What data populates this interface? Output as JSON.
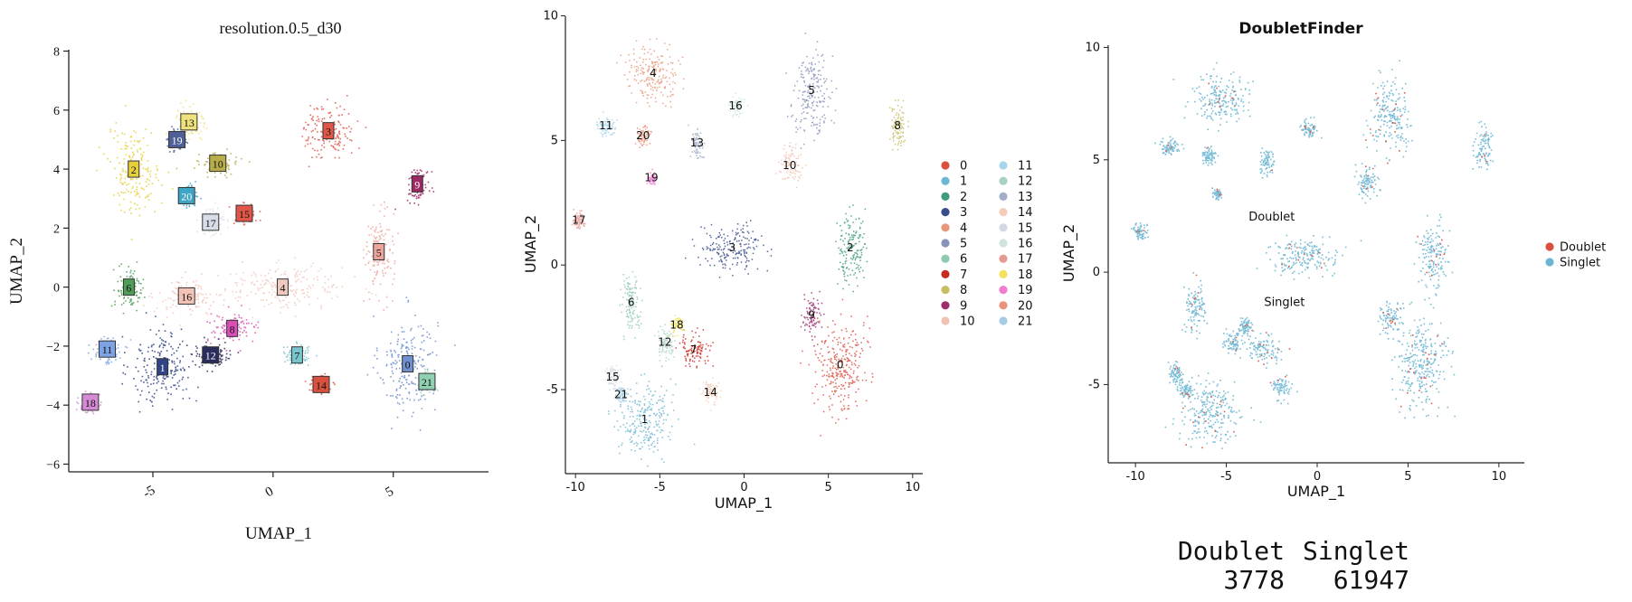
{
  "chart_data": [
    {
      "type": "scatter",
      "title": "resolution.0.5_d30",
      "xlabel": "UMAP_1",
      "ylabel": "UMAP_2",
      "xlim": [
        -8.5,
        9
      ],
      "ylim": [
        -6.2,
        8.2
      ],
      "x_ticks": [
        -5,
        0,
        5
      ],
      "y_ticks": [
        8,
        6,
        4,
        2,
        0,
        -2,
        -4,
        -6
      ],
      "x_tick_labels": [
        "-5",
        "0",
        "5"
      ],
      "y_tick_labels": [
        "8",
        "6",
        "4",
        "2",
        "0",
        "−2",
        "−4",
        "−6"
      ],
      "grid": false,
      "legend": "none",
      "cluster_labels": [
        {
          "label": "0",
          "x": 5.6,
          "y": -2.6,
          "color": "#6f8fcf"
        },
        {
          "label": "1",
          "x": -4.6,
          "y": -2.7,
          "color": "#2f4486"
        },
        {
          "label": "2",
          "x": -5.8,
          "y": 4.0,
          "color": "#e6cf3a"
        },
        {
          "label": "3",
          "x": 2.3,
          "y": 5.3,
          "color": "#e0574a"
        },
        {
          "label": "4",
          "x": 0.4,
          "y": 0.0,
          "color": "#efc9bd"
        },
        {
          "label": "5",
          "x": 4.4,
          "y": 1.2,
          "color": "#eda49b"
        },
        {
          "label": "6",
          "x": -6.0,
          "y": 0.0,
          "color": "#4f9e58"
        },
        {
          "label": "7",
          "x": 1.0,
          "y": -2.3,
          "color": "#78c5cf"
        },
        {
          "label": "8",
          "x": -1.7,
          "y": -1.4,
          "color": "#d94fb5"
        },
        {
          "label": "9",
          "x": 6.0,
          "y": 3.5,
          "color": "#9c2963"
        },
        {
          "label": "10",
          "x": -2.3,
          "y": 4.2,
          "color": "#b8ad4a"
        },
        {
          "label": "11",
          "x": -6.9,
          "y": -2.1,
          "color": "#7ea3e4"
        },
        {
          "label": "12",
          "x": -2.6,
          "y": -2.3,
          "color": "#2a2c5c"
        },
        {
          "label": "13",
          "x": -3.5,
          "y": 5.6,
          "color": "#efe27c"
        },
        {
          "label": "14",
          "x": 2.0,
          "y": -3.3,
          "color": "#d9503e"
        },
        {
          "label": "15",
          "x": -1.2,
          "y": 2.5,
          "color": "#e0574a"
        },
        {
          "label": "16",
          "x": -3.6,
          "y": -0.3,
          "color": "#f3c4b6"
        },
        {
          "label": "17",
          "x": -2.6,
          "y": 2.2,
          "color": "#d8dde8"
        },
        {
          "label": "18",
          "x": -7.6,
          "y": -3.9,
          "color": "#d58ad6"
        },
        {
          "label": "19",
          "x": -4.0,
          "y": 5.0,
          "color": "#4e6096"
        },
        {
          "label": "20",
          "x": -3.6,
          "y": 3.1,
          "color": "#3fa5c5"
        },
        {
          "label": "21",
          "x": 6.4,
          "y": -3.2,
          "color": "#8fd0b3"
        }
      ]
    },
    {
      "type": "scatter",
      "title": "",
      "xlabel": "UMAP_1",
      "ylabel": "UMAP_2",
      "xlim": [
        -10.6,
        10.6
      ],
      "ylim": [
        -8.3,
        10.2
      ],
      "x_ticks": [
        -10,
        -5,
        0,
        5,
        10
      ],
      "y_ticks": [
        10,
        5,
        0,
        -5
      ],
      "grid": false,
      "legend": "right",
      "legend_entries": [
        {
          "label": "0",
          "color": "#d9503e"
        },
        {
          "label": "1",
          "color": "#6cb6d3"
        },
        {
          "label": "2",
          "color": "#3f9b7e"
        },
        {
          "label": "3",
          "color": "#3a4e8c"
        },
        {
          "label": "4",
          "color": "#e8987a"
        },
        {
          "label": "5",
          "color": "#8793b8"
        },
        {
          "label": "6",
          "color": "#8fc9b0"
        },
        {
          "label": "7",
          "color": "#c82a22"
        },
        {
          "label": "8",
          "color": "#c7be63"
        },
        {
          "label": "9",
          "color": "#9c2e6e"
        },
        {
          "label": "10",
          "color": "#efc2b3"
        },
        {
          "label": "11",
          "color": "#a9d5ea"
        },
        {
          "label": "12",
          "color": "#a9d1c3"
        },
        {
          "label": "13",
          "color": "#a4aec9"
        },
        {
          "label": "14",
          "color": "#f4cdb9"
        },
        {
          "label": "15",
          "color": "#d4d7e4"
        },
        {
          "label": "16",
          "color": "#cfe5db"
        },
        {
          "label": "17",
          "color": "#e49a92"
        },
        {
          "label": "18",
          "color": "#f2e35e"
        },
        {
          "label": "19",
          "color": "#ef7ed0"
        },
        {
          "label": "20",
          "color": "#e8937b"
        },
        {
          "label": "21",
          "color": "#a6cce2"
        }
      ],
      "cluster_labels": [
        {
          "label": "0",
          "x": 5.7,
          "y": -4.0
        },
        {
          "label": "1",
          "x": -5.9,
          "y": -6.2
        },
        {
          "label": "2",
          "x": 6.3,
          "y": 0.7
        },
        {
          "label": "3",
          "x": -0.7,
          "y": 0.7
        },
        {
          "label": "4",
          "x": -5.4,
          "y": 7.7
        },
        {
          "label": "5",
          "x": 4.0,
          "y": 7.0
        },
        {
          "label": "6",
          "x": -6.7,
          "y": -1.5
        },
        {
          "label": "7",
          "x": -3.0,
          "y": -3.4
        },
        {
          "label": "8",
          "x": 9.1,
          "y": 5.6
        },
        {
          "label": "9",
          "x": 4.0,
          "y": -2.0
        },
        {
          "label": "10",
          "x": 2.7,
          "y": 4.0
        },
        {
          "label": "11",
          "x": -8.2,
          "y": 5.6
        },
        {
          "label": "12",
          "x": -4.7,
          "y": -3.1
        },
        {
          "label": "13",
          "x": -2.8,
          "y": 4.9
        },
        {
          "label": "14",
          "x": -2.0,
          "y": -5.1
        },
        {
          "label": "15",
          "x": -7.8,
          "y": -4.5
        },
        {
          "label": "16",
          "x": -0.5,
          "y": 6.4
        },
        {
          "label": "17",
          "x": -9.8,
          "y": 1.8
        },
        {
          "label": "18",
          "x": -4.0,
          "y": -2.4
        },
        {
          "label": "19",
          "x": -5.5,
          "y": 3.5
        },
        {
          "label": "20",
          "x": -6.0,
          "y": 5.2
        },
        {
          "label": "21",
          "x": -7.3,
          "y": -5.2
        }
      ]
    },
    {
      "type": "scatter",
      "title": "DoubletFinder",
      "xlabel": "UMAP_1",
      "ylabel": "UMAP_2",
      "xlim": [
        -11.5,
        11.4
      ],
      "ylim": [
        -8.4,
        10.3
      ],
      "x_ticks": [
        -10,
        -5,
        0,
        5,
        10
      ],
      "y_ticks": [
        10,
        5,
        0,
        -5
      ],
      "grid": false,
      "legend": "right",
      "legend_entries": [
        {
          "label": "Doublet",
          "color": "#d9503e"
        },
        {
          "label": "Singlet",
          "color": "#6cb6d3"
        }
      ],
      "annotations": [
        {
          "text": "Doublet",
          "x": -2.5,
          "y": 2.3
        },
        {
          "text": "Singlet",
          "x": -1.8,
          "y": -1.5
        }
      ]
    }
  ],
  "counts_table": {
    "headers": [
      "Doublet",
      "Singlet"
    ],
    "values": [
      "3778",
      "61947"
    ]
  }
}
